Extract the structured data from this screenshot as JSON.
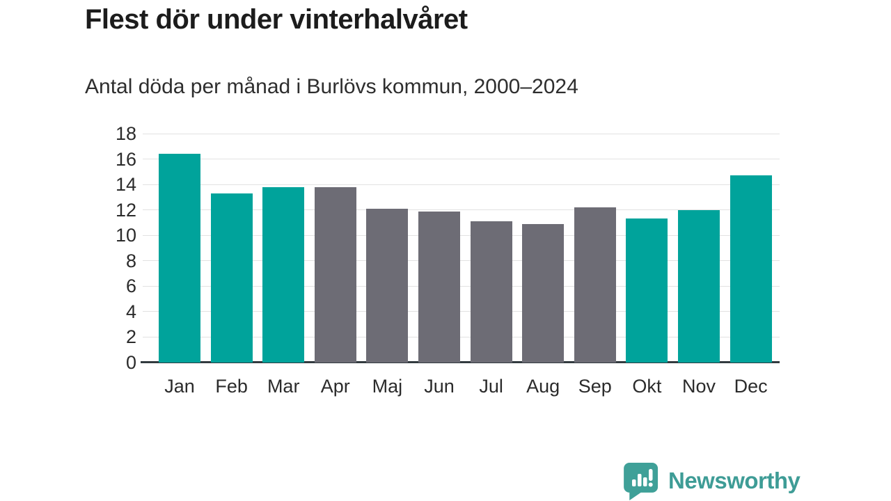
{
  "header": {
    "title": "Flest dör under vinterhalvåret",
    "subtitle": "Antal döda per månad i Burlövs kommun, 2000–2024"
  },
  "chart_data": {
    "type": "bar",
    "title": "Flest dör under vinterhalvåret",
    "subtitle": "Antal döda per månad i Burlövs kommun, 2000–2024",
    "categories": [
      "Jan",
      "Feb",
      "Mar",
      "Apr",
      "Maj",
      "Jun",
      "Jul",
      "Aug",
      "Sep",
      "Okt",
      "Nov",
      "Dec"
    ],
    "values": [
      16.4,
      13.3,
      13.8,
      13.8,
      12.1,
      11.9,
      11.1,
      10.9,
      12.2,
      11.3,
      12.0,
      14.7
    ],
    "bar_color_keys": [
      "highlight",
      "highlight",
      "highlight",
      "base",
      "base",
      "base",
      "base",
      "base",
      "base",
      "highlight",
      "highlight",
      "highlight"
    ],
    "colors": {
      "highlight": "#00a39b",
      "base": "#6d6c75"
    },
    "xlabel": "",
    "ylabel": "",
    "ylim": [
      0,
      18
    ],
    "yticks": [
      0,
      2,
      4,
      6,
      8,
      10,
      12,
      14,
      16,
      18
    ],
    "grid": true,
    "legend": "none",
    "highlight_meaning": "winter half-year months (Okt–Mar) in teal, summer months (Apr–Sep) in gray"
  },
  "branding": {
    "logo_text": "Newsworthy",
    "logo_color": "#3e9c96",
    "logo_icon": "speech-bubble-bar-chart-icon"
  }
}
